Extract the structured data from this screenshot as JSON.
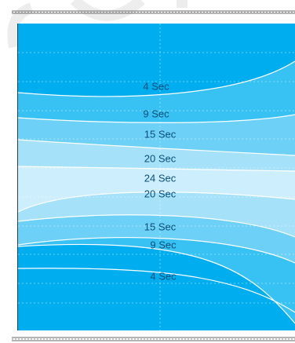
{
  "diagram": {
    "background_color": "#ffffff",
    "band_colors": {
      "outer": "#00aeef",
      "band_9": "#38c1f3",
      "band_15": "#6dd0f6",
      "band_20": "#a5e1f9",
      "center": "#cdeefc"
    },
    "labels": [
      {
        "id": "label-4-sec-top",
        "text": "4 Sec",
        "color": "#0a4f7a"
      },
      {
        "id": "label-9-sec-top",
        "text": "9 Sec",
        "color": "#0a4f7a"
      },
      {
        "id": "label-15-sec-top",
        "text": "15 Sec",
        "color": "#0a4f7a"
      },
      {
        "id": "label-20-sec-top",
        "text": "20 Sec",
        "color": "#0a4f7a"
      },
      {
        "id": "label-24-sec",
        "text": "24 Sec",
        "color": "#0a4f7a"
      },
      {
        "id": "label-20-sec-bottom",
        "text": "20 Sec",
        "color": "#0a4f7a"
      },
      {
        "id": "label-15-sec-bottom",
        "text": "15 Sec",
        "color": "#0a4f7a"
      },
      {
        "id": "label-9-sec-bottom",
        "text": "9 Sec",
        "color": "#0a4f7a"
      },
      {
        "id": "label-4-sec-bottom",
        "text": "4 Sec",
        "color": "#0a4f7a"
      }
    ]
  }
}
